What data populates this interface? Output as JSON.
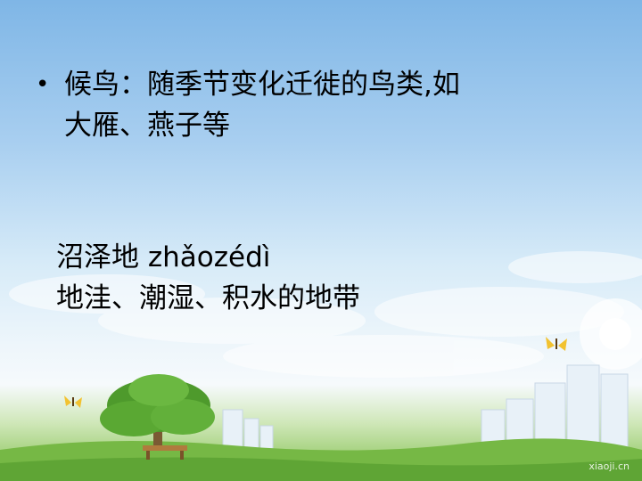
{
  "slide": {
    "bullet": {
      "marker": "•",
      "line1": "候鸟：随季节变化迁徙的鸟类,如",
      "line2": "大雁、燕子等"
    },
    "term": {
      "word_line": "沼泽地 zhǎozédì",
      "definition_line": "地洼、潮湿、积水的地带"
    },
    "watermark": "xiaoji.cn"
  },
  "colors": {
    "sky_top": "#7fb6e6",
    "grass": "#7fbe4a",
    "text": "#000000"
  }
}
